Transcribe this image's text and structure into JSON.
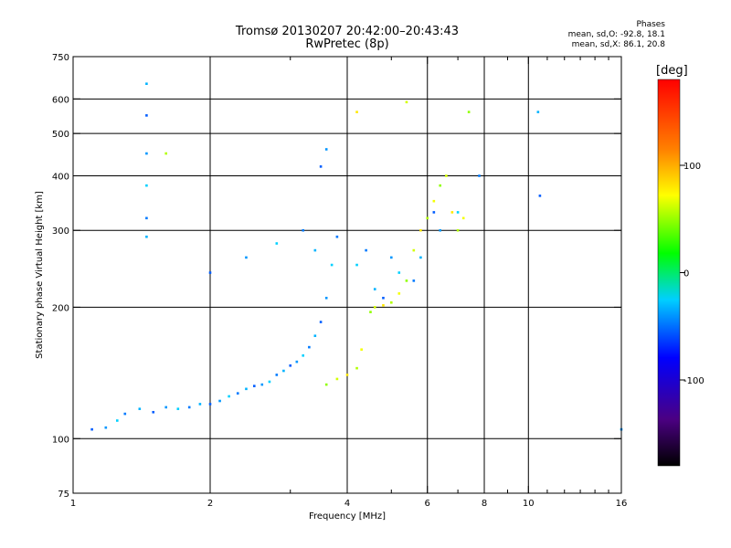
{
  "chart_data": {
    "type": "scatter",
    "title": "Tromsø 20130207 20:42:00–20:43:43",
    "subtitle": "RwPretec (8p)",
    "xlabel": "Frequency [MHz]",
    "ylabel": "Stationary phase Virtual Height [km]",
    "x_scale": "log",
    "y_scale": "log",
    "xlim": [
      1,
      16
    ],
    "ylim": [
      75,
      750
    ],
    "x_ticks": [
      1,
      2,
      4,
      6,
      8,
      10,
      16
    ],
    "x_tick_labels": [
      "1",
      "2",
      "4",
      "6",
      "8",
      "10",
      "16"
    ],
    "x_minor_ticks": [
      3,
      5,
      7,
      9,
      11,
      12,
      13,
      14,
      15
    ],
    "x_grid": [
      2,
      4,
      6,
      8,
      10
    ],
    "y_ticks": [
      75,
      100,
      200,
      300,
      400,
      500,
      600,
      750
    ],
    "y_tick_labels": [
      "75",
      "100",
      "200",
      "300",
      "400",
      "500",
      "600",
      "750"
    ],
    "y_grid": [
      100,
      200,
      300,
      400,
      500,
      600
    ],
    "grid": true,
    "stats": {
      "heading": "Phases",
      "line_o": "mean, sd,O: -92.8, 18.1",
      "line_x": "mean, sd,X:  86.1, 20.8"
    },
    "colorbar": {
      "unit": "[deg]",
      "range": [
        -180,
        180
      ],
      "ticks": [
        100,
        0,
        -100
      ],
      "tick_labels": [
        "100",
        "0",
        "-100"
      ],
      "colormap": "rainbow"
    },
    "series": [
      {
        "mode": "O",
        "phase_mean": -92.8,
        "phase_sd": 18.1,
        "points": [
          [
            1.1,
            105
          ],
          [
            1.18,
            106
          ],
          [
            1.25,
            110
          ],
          [
            1.3,
            114
          ],
          [
            1.4,
            117
          ],
          [
            1.5,
            115
          ],
          [
            1.6,
            118
          ],
          [
            1.7,
            117
          ],
          [
            1.8,
            118
          ],
          [
            1.9,
            120
          ],
          [
            2.0,
            120
          ],
          [
            2.1,
            122
          ],
          [
            2.2,
            125
          ],
          [
            2.3,
            127
          ],
          [
            2.4,
            130
          ],
          [
            2.5,
            132
          ],
          [
            2.6,
            133
          ],
          [
            2.7,
            135
          ],
          [
            2.8,
            140
          ],
          [
            2.9,
            143
          ],
          [
            3.0,
            147
          ],
          [
            3.1,
            150
          ],
          [
            3.2,
            155
          ],
          [
            3.3,
            162
          ],
          [
            3.4,
            172
          ],
          [
            3.5,
            185
          ],
          [
            3.6,
            210
          ],
          [
            3.7,
            250
          ],
          [
            3.8,
            290
          ],
          [
            1.45,
            650
          ],
          [
            1.45,
            550
          ],
          [
            1.45,
            450
          ],
          [
            1.45,
            380
          ],
          [
            1.45,
            320
          ],
          [
            1.45,
            290
          ],
          [
            2.0,
            240
          ],
          [
            2.4,
            260
          ],
          [
            2.8,
            280
          ],
          [
            3.2,
            300
          ],
          [
            3.4,
            270
          ],
          [
            3.5,
            420
          ],
          [
            3.6,
            460
          ],
          [
            4.2,
            250
          ],
          [
            4.4,
            270
          ],
          [
            4.6,
            220
          ],
          [
            4.8,
            210
          ],
          [
            5.0,
            260
          ],
          [
            5.2,
            240
          ],
          [
            5.6,
            230
          ],
          [
            5.8,
            260
          ],
          [
            6.2,
            330
          ],
          [
            6.4,
            300
          ],
          [
            7.0,
            330
          ],
          [
            7.8,
            400
          ],
          [
            10.5,
            560
          ],
          [
            10.6,
            360
          ],
          [
            16,
            105
          ]
        ]
      },
      {
        "mode": "X",
        "phase_mean": 86.1,
        "phase_sd": 20.8,
        "points": [
          [
            3.6,
            133
          ],
          [
            3.8,
            137
          ],
          [
            4.0,
            140
          ],
          [
            4.2,
            145
          ],
          [
            4.3,
            160
          ],
          [
            4.5,
            195
          ],
          [
            4.6,
            200
          ],
          [
            4.8,
            202
          ],
          [
            5.0,
            205
          ],
          [
            5.2,
            215
          ],
          [
            5.4,
            230
          ],
          [
            5.6,
            270
          ],
          [
            5.8,
            300
          ],
          [
            6.0,
            320
          ],
          [
            6.2,
            350
          ],
          [
            6.4,
            380
          ],
          [
            6.6,
            400
          ],
          [
            6.8,
            330
          ],
          [
            7.0,
            300
          ],
          [
            7.2,
            320
          ],
          [
            7.4,
            560
          ],
          [
            5.4,
            590
          ],
          [
            4.2,
            560
          ],
          [
            1.6,
            450
          ]
        ]
      }
    ]
  }
}
